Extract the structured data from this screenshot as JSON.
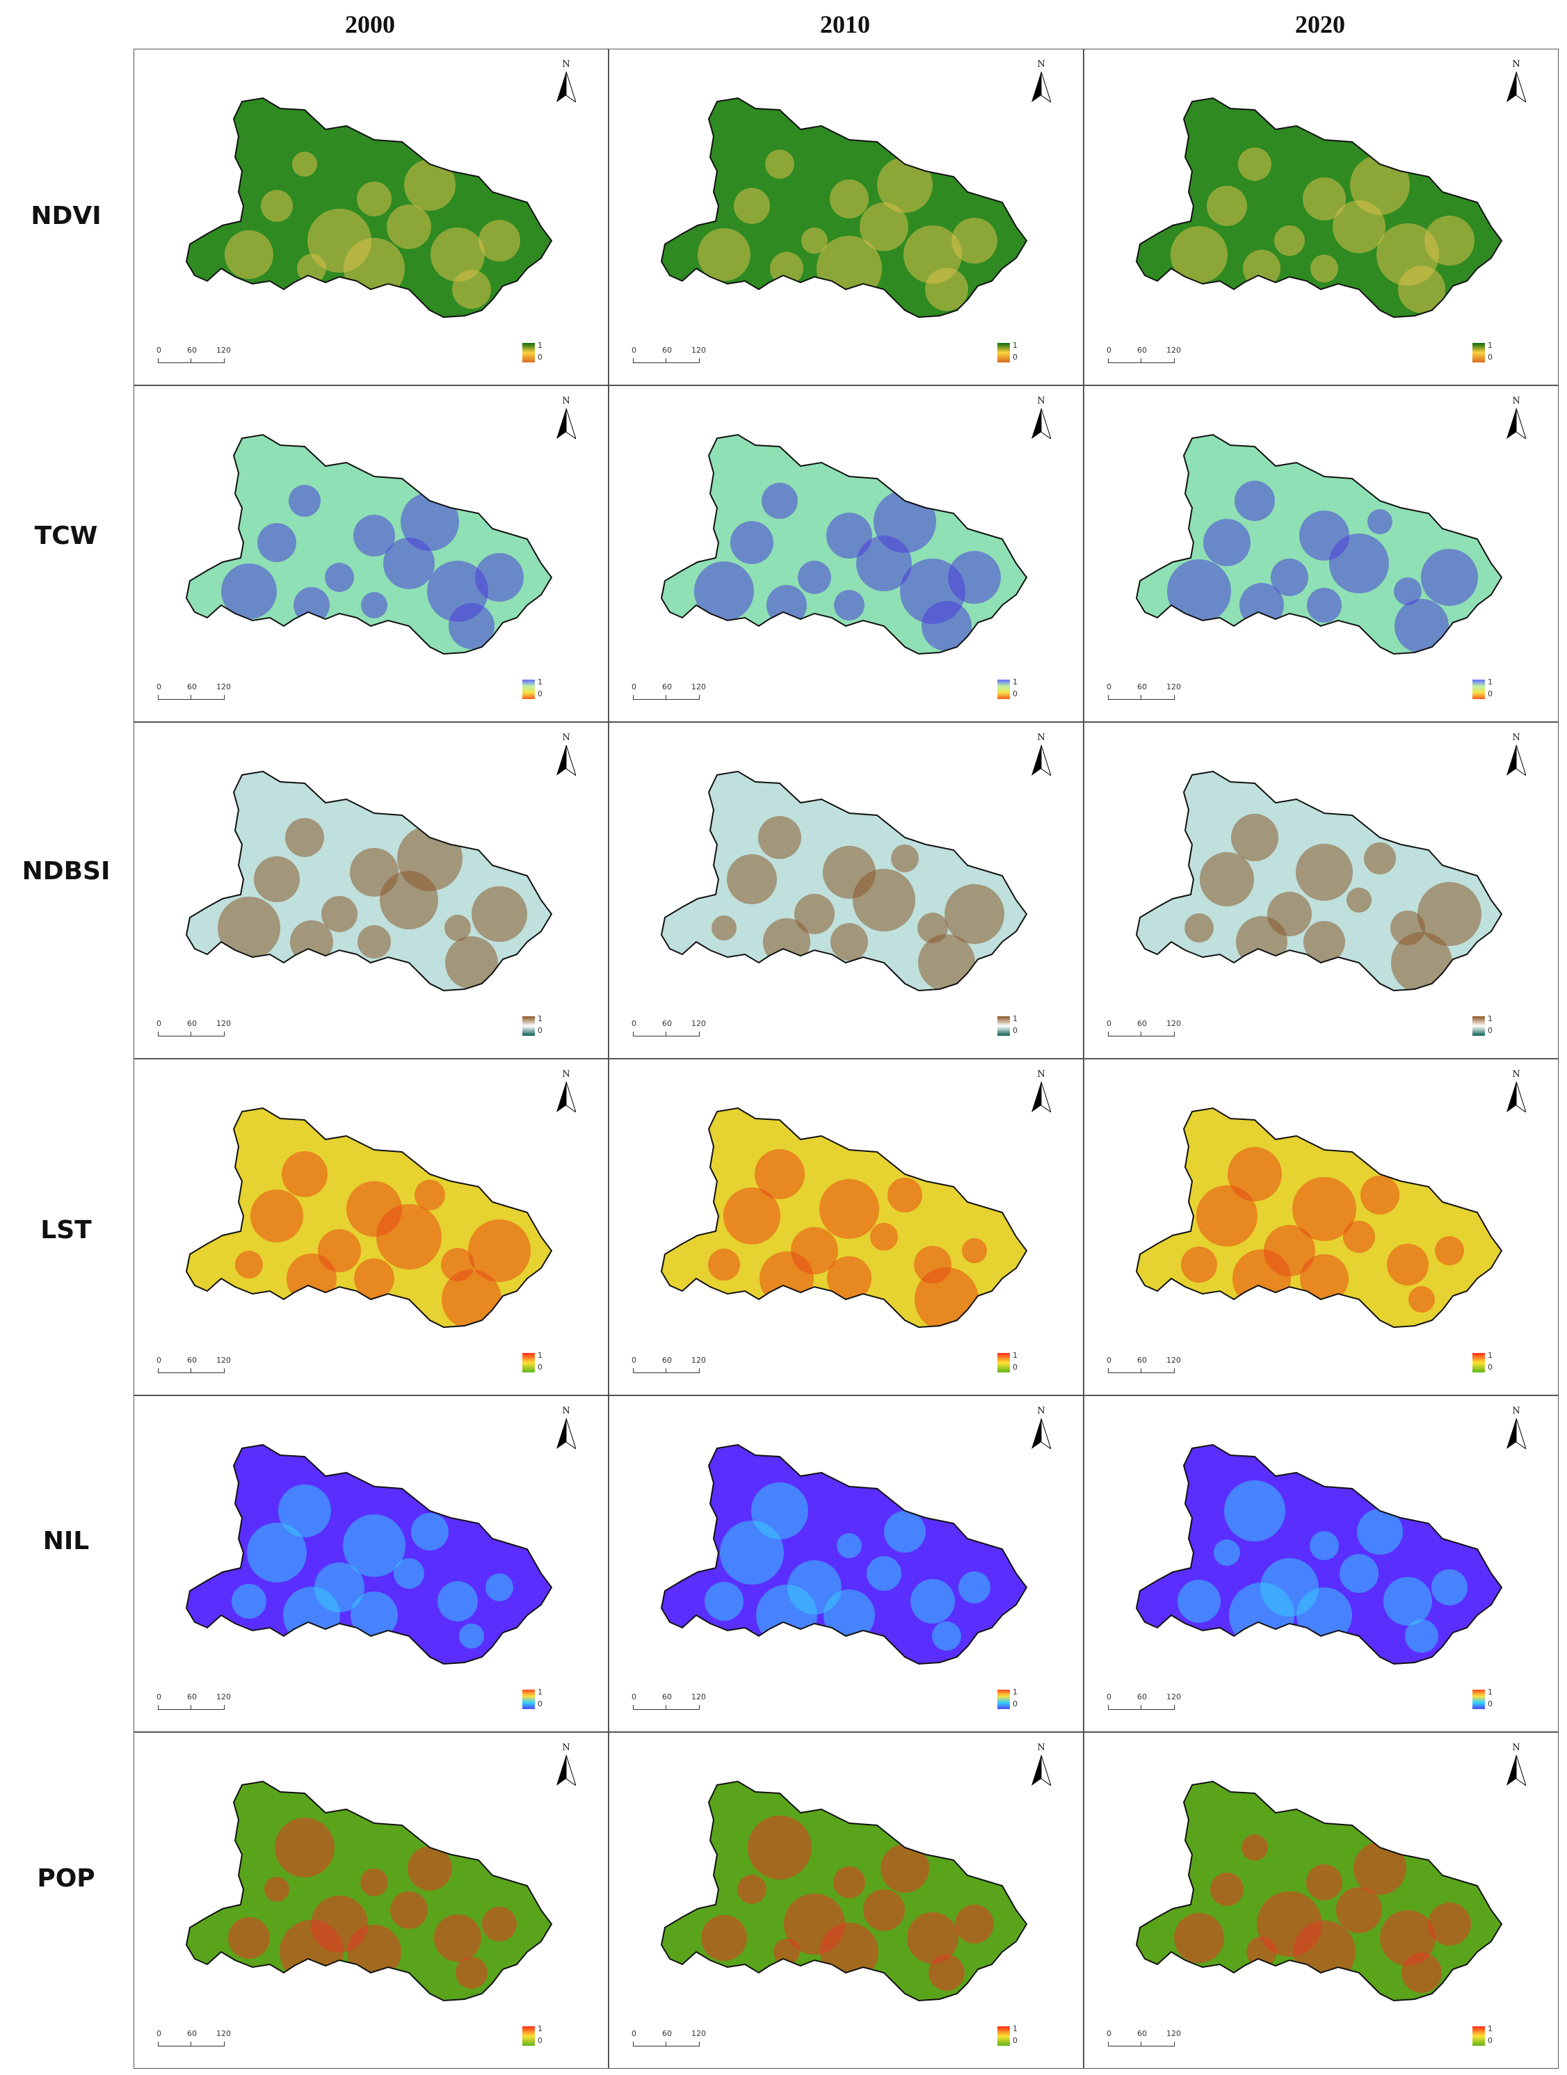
{
  "columns": [
    "2000",
    "2010",
    "2020"
  ],
  "rows": [
    {
      "label": "NDVI",
      "ramp": [
        "#0b6b10",
        "#ffd23f",
        "#d96a1e"
      ],
      "base": "#2f8a22",
      "hot": "#d9c04a"
    },
    {
      "label": "TCW",
      "ramp": [
        "#5f6bff",
        "#bff0a8",
        "#f3e34a",
        "#ff5a1e"
      ],
      "base": "#8fe0b4",
      "hot": "#4b3fd8"
    },
    {
      "label": "NDBSI",
      "ramp": [
        "#8a5424",
        "#ffffff",
        "#0d5f55"
      ],
      "base": "#bfe0dc",
      "hot": "#8a5a2c"
    },
    {
      "label": "LST",
      "ramp": [
        "#ff2a1a",
        "#ffe234",
        "#5fb51a"
      ],
      "base": "#e6d230",
      "hot": "#e84a14"
    },
    {
      "label": "NIL",
      "ramp": [
        "#ff4a20",
        "#ffe03a",
        "#35d0ff",
        "#4a4aff"
      ],
      "base": "#5a2eff",
      "hot": "#38c8ff"
    },
    {
      "label": "POP",
      "ramp": [
        "#ff2a1a",
        "#ffe234",
        "#5fb51a"
      ],
      "base": "#5aa41c",
      "hot": "#e03a22"
    }
  ],
  "legend": {
    "high": "1",
    "low": "0"
  },
  "scalebar": {
    "labels": [
      "0",
      "60",
      "120"
    ]
  },
  "north_label": "N"
}
